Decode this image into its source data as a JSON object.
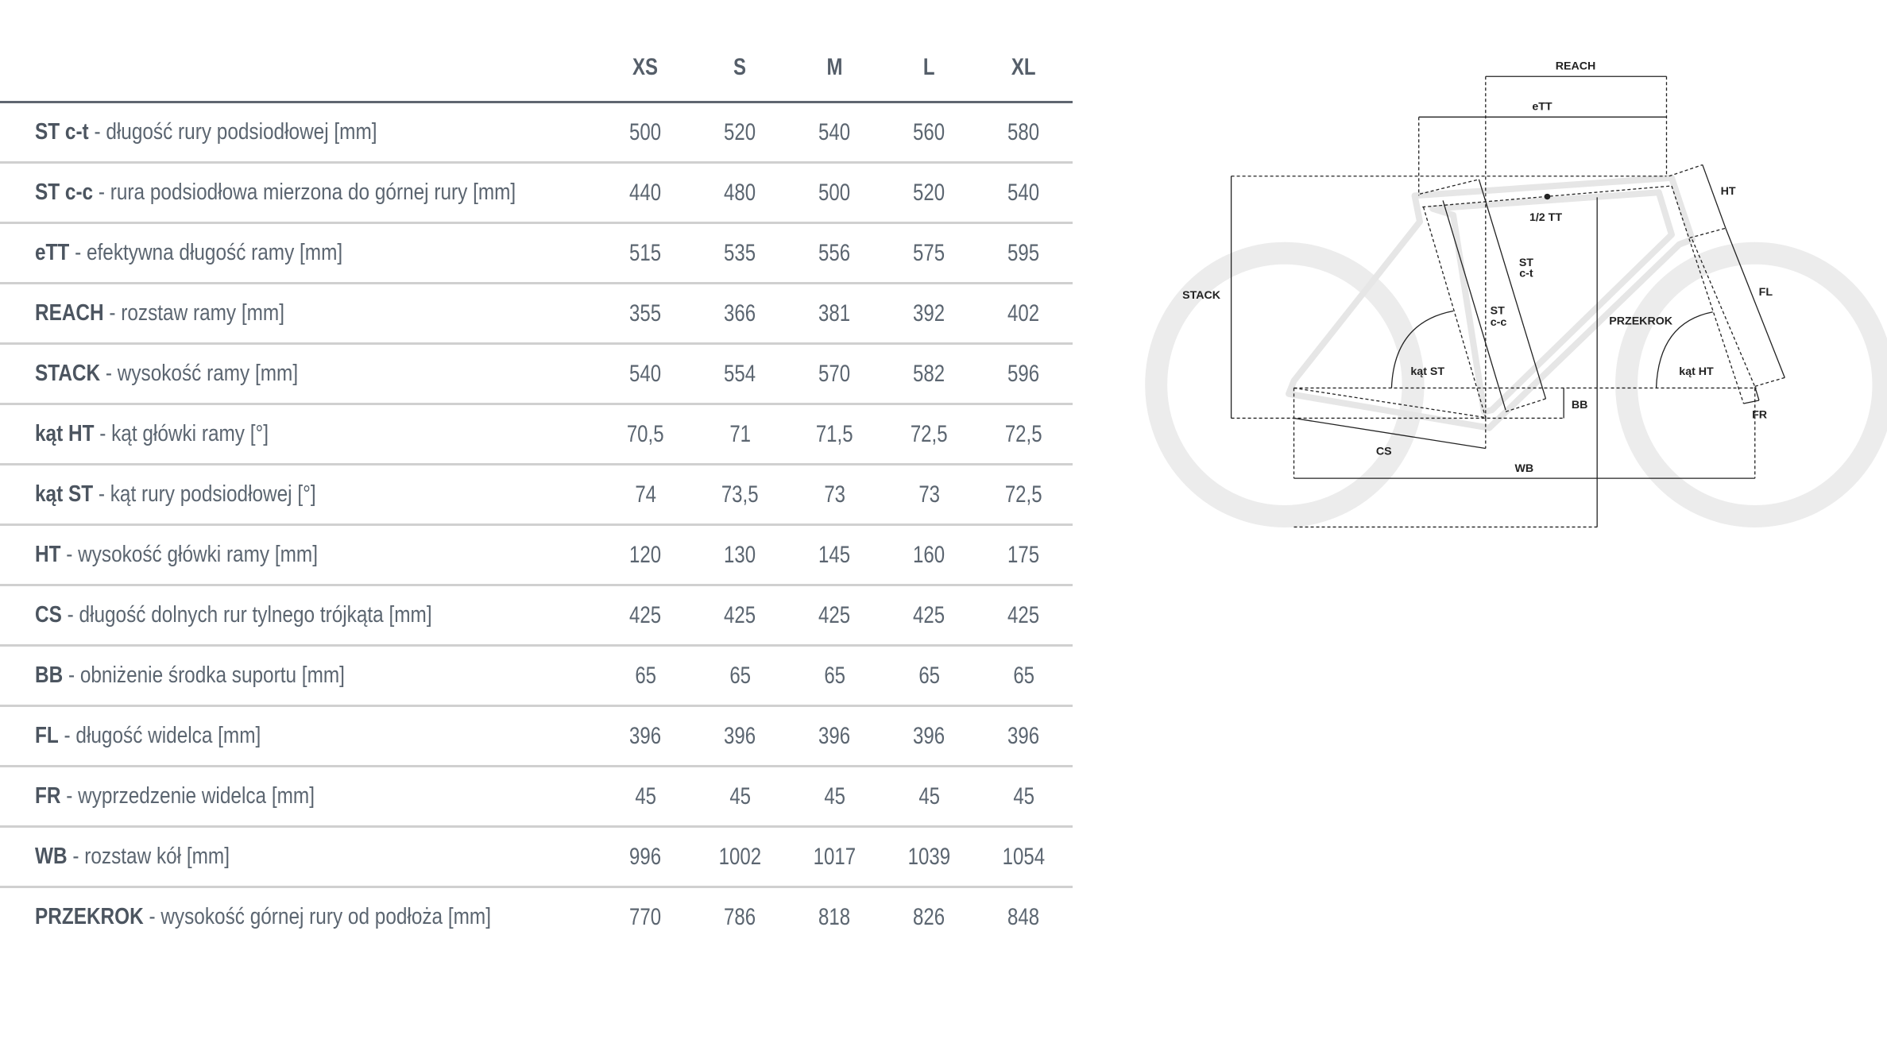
{
  "table": {
    "sizes": [
      "XS",
      "S",
      "M",
      "L",
      "XL"
    ],
    "rows": [
      {
        "abbr": "ST c-t",
        "desc": " - długość rury podsiodłowej [mm]",
        "values": [
          "500",
          "520",
          "540",
          "560",
          "580"
        ]
      },
      {
        "abbr": "ST c-c",
        "desc": " - rura podsiodłowa mierzona do górnej rury [mm]",
        "values": [
          "440",
          "480",
          "500",
          "520",
          "540"
        ]
      },
      {
        "abbr": "eTT",
        "desc": " - efektywna długość ramy [mm]",
        "values": [
          "515",
          "535",
          "556",
          "575",
          "595"
        ]
      },
      {
        "abbr": "REACH",
        "desc": " - rozstaw ramy [mm]",
        "values": [
          "355",
          "366",
          "381",
          "392",
          "402"
        ]
      },
      {
        "abbr": "STACK",
        "desc": " - wysokość ramy [mm]",
        "values": [
          "540",
          "554",
          "570",
          "582",
          "596"
        ]
      },
      {
        "abbr": "kąt HT",
        "desc": " - kąt główki ramy [°]",
        "values": [
          "70,5",
          "71",
          "71,5",
          "72,5",
          "72,5"
        ]
      },
      {
        "abbr": "kąt ST",
        "desc": " - kąt rury podsiodłowej [°]",
        "values": [
          "74",
          "73,5",
          "73",
          "73",
          "72,5"
        ]
      },
      {
        "abbr": "HT",
        "desc": " - wysokość główki ramy [mm]",
        "values": [
          "120",
          "130",
          "145",
          "160",
          "175"
        ]
      },
      {
        "abbr": "CS",
        "desc": " - długość dolnych rur tylnego trójkąta [mm]",
        "values": [
          "425",
          "425",
          "425",
          "425",
          "425"
        ]
      },
      {
        "abbr": "BB",
        "desc": " - obniżenie środka suportu [mm]",
        "values": [
          "65",
          "65",
          "65",
          "65",
          "65"
        ]
      },
      {
        "abbr": "FL",
        "desc": " - długość widelca [mm]",
        "values": [
          "396",
          "396",
          "396",
          "396",
          "396"
        ]
      },
      {
        "abbr": "FR",
        "desc": " - wyprzedzenie widelca [mm]",
        "values": [
          "45",
          "45",
          "45",
          "45",
          "45"
        ]
      },
      {
        "abbr": "WB",
        "desc": " - rozstaw kół [mm]",
        "values": [
          "996",
          "1002",
          "1017",
          "1039",
          "1054"
        ]
      },
      {
        "abbr": "PRZEKROK",
        "desc": " - wysokość górnej rury od podłoża [mm]",
        "values": [
          "770",
          "786",
          "818",
          "826",
          "848"
        ]
      }
    ]
  },
  "diagram": {
    "labels": {
      "reach": "REACH",
      "ett": "eTT",
      "ht": "HT",
      "half_tt": "1/2 TT",
      "st": "ST",
      "ct": "c-t",
      "cc": "c-c",
      "fl": "FL",
      "stack": "STACK",
      "przekrok": "PRZEKROK",
      "kat_st": "kąt ST",
      "kat_ht": "kąt HT",
      "bb": "BB",
      "fr": "FR",
      "cs": "CS",
      "wb": "WB"
    },
    "colors": {
      "lines": "#222222",
      "wheels": "#ececec",
      "text": "#5b6570",
      "header_rule": "#5f6670",
      "row_rule": "#d0d0d0"
    }
  }
}
